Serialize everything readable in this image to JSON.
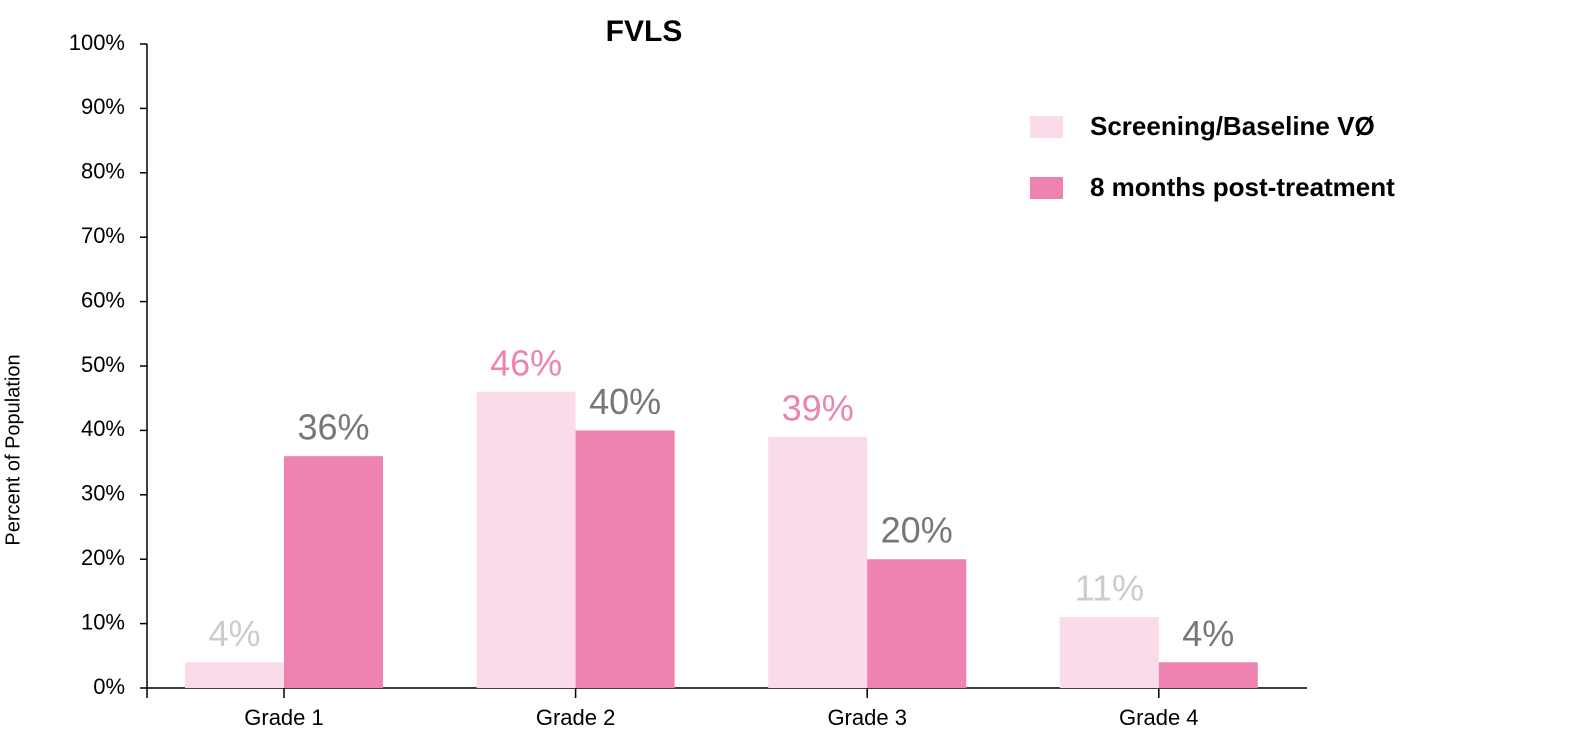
{
  "chart_data": {
    "type": "bar",
    "title": "FVLS",
    "y_label": "Percent of Population",
    "categories": [
      "Grade 1",
      "Grade 2",
      "Grade 3",
      "Grade 4"
    ],
    "series": [
      {
        "name": "Screening/Baseline VØ",
        "color": "#fadbe9",
        "values": [
          4,
          46,
          39,
          11
        ],
        "value_labels": [
          "4%",
          "46%",
          "39%",
          "11%"
        ],
        "value_label_colors": [
          "#cccccc",
          "#ee82b0",
          "#ee82b0",
          "#cccccc"
        ]
      },
      {
        "name": "8 months post-treatment",
        "color": "#ee82b0",
        "values": [
          36,
          40,
          20,
          4
        ],
        "value_labels": [
          "36%",
          "40%",
          "20%",
          "4%"
        ],
        "value_label_colors": [
          "#777777",
          "#777777",
          "#777777",
          "#777777"
        ]
      }
    ],
    "ylim": [
      0,
      100
    ],
    "yticks": [
      {
        "value": 0,
        "label": "0%"
      },
      {
        "value": 10,
        "label": "10%"
      },
      {
        "value": 20,
        "label": "20%"
      },
      {
        "value": 30,
        "label": "30%"
      },
      {
        "value": 40,
        "label": "40%"
      },
      {
        "value": 50,
        "label": "50%"
      },
      {
        "value": 60,
        "label": "60%"
      },
      {
        "value": 70,
        "label": "70%"
      },
      {
        "value": 80,
        "label": "80%"
      },
      {
        "value": 90,
        "label": "90%"
      },
      {
        "value": 100,
        "label": "100%"
      }
    ],
    "grid": false,
    "legend": "upper right"
  }
}
